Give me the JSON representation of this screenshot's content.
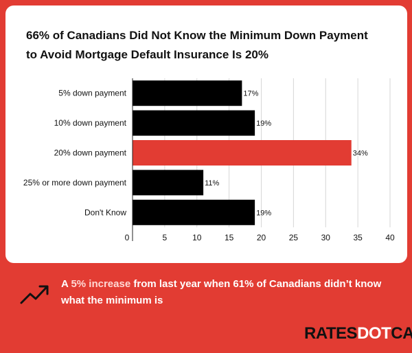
{
  "chart_data": {
    "type": "bar",
    "orientation": "horizontal",
    "title": "66% of Canadians Did Not Know the Minimum Down Payment to Avoid Mortgage Default Insurance Is 20%",
    "title_lines": [
      "66% of Canadians Did Not Know the Minimum Down Payment",
      "to Avoid Mortgage Default Insurance Is 20%"
    ],
    "categories": [
      "5% down payment",
      "10% down payment",
      "20% down payment",
      "25% or more down payment",
      "Don't Know"
    ],
    "values": [
      17,
      19,
      34,
      11,
      19
    ],
    "value_labels": [
      "17%",
      "19%",
      "34%",
      "11%",
      "19%"
    ],
    "bar_colors": [
      "#000000",
      "#000000",
      "#e23c33",
      "#000000",
      "#000000"
    ],
    "xlim": [
      0,
      40
    ],
    "xticks": [
      0,
      5,
      10,
      15,
      20,
      25,
      30,
      35,
      40
    ],
    "grid": true
  },
  "footer": {
    "prefix": "A ",
    "highlight": "5% increase",
    "suffix": " from last year when 61% of Canadians didn’t know what the minimum is",
    "icon": "trending-up-icon"
  },
  "logo": {
    "part1": "RATES",
    "part2": "DOT",
    "part3": "CA"
  },
  "colors": {
    "background": "#e23c33",
    "card": "#ffffff",
    "bar": "#000000",
    "accent": "#e23c33"
  }
}
